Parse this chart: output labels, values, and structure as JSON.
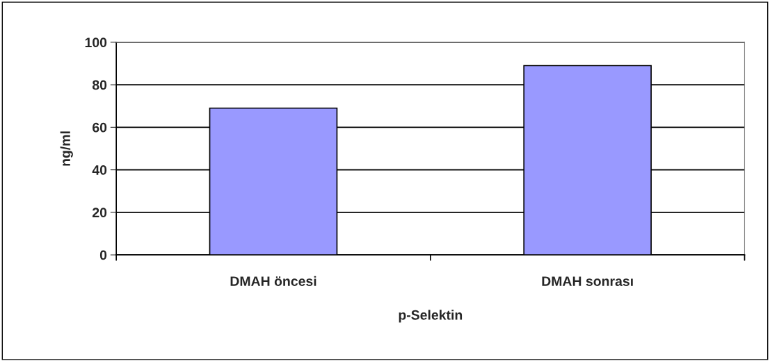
{
  "chart_data": {
    "type": "bar",
    "xlabel": "p-Selektin",
    "ylabel": "ng/ml",
    "categories": [
      "DMAH öncesi",
      "DMAH sonrası"
    ],
    "values": [
      69,
      89
    ],
    "color": "#9999ff",
    "ylim": [
      0,
      100
    ],
    "yticks": [
      0,
      20,
      40,
      60,
      80,
      100
    ],
    "grid": "y",
    "legend": false
  }
}
